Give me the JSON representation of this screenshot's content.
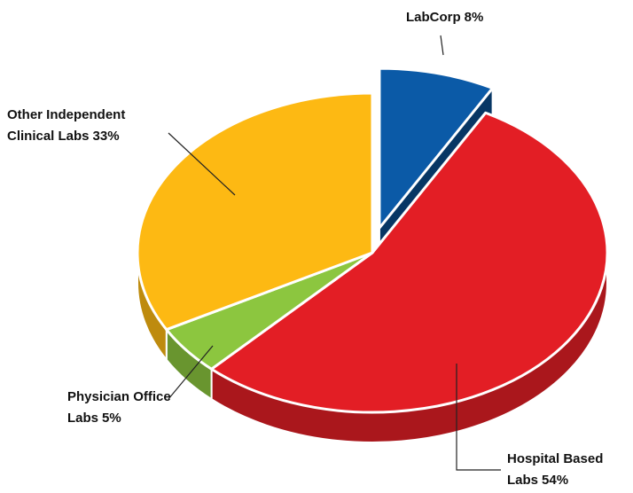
{
  "chart_data": {
    "type": "pie",
    "categories": [
      "LabCorp",
      "Hospital Based Labs",
      "Physician Office Labs",
      "Other Independent Clinical Labs"
    ],
    "values": [
      8,
      54,
      5,
      33
    ],
    "value_labels": [
      "8%",
      "54%",
      "5%",
      "33%"
    ],
    "colors": [
      "#0b5aa7",
      "#e31e25",
      "#8cc63f",
      "#fdb913"
    ],
    "exploded": [
      true,
      false,
      false,
      false
    ]
  }
}
